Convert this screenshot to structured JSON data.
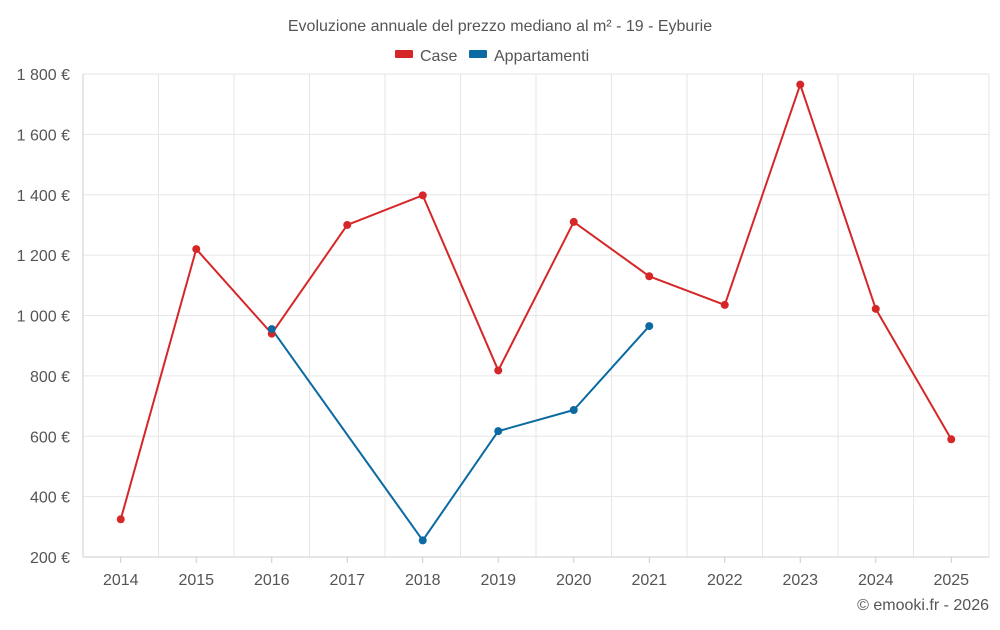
{
  "colors": {
    "case": "#d62728",
    "appartamenti": "#0a6aa1",
    "grid": "#e6e6e6",
    "axis": "#cccccc",
    "text": "#555555"
  },
  "chart_data": {
    "type": "line",
    "title": "Evoluzione annuale del prezzo mediano al m² - 19 - Eyburie",
    "x": [
      "2014",
      "2015",
      "2016",
      "2017",
      "2018",
      "2019",
      "2020",
      "2021",
      "2022",
      "2023",
      "2024",
      "2025"
    ],
    "ylim": [
      200,
      1800
    ],
    "yticks": [
      200,
      400,
      600,
      800,
      1000,
      1200,
      1400,
      1600,
      1800
    ],
    "ytick_labels": [
      "200 €",
      "400 €",
      "600 €",
      "800 €",
      "1 000 €",
      "1 200 €",
      "1 400 €",
      "1 600 €",
      "1 800 €"
    ],
    "legend_position": "top-center",
    "grid": true,
    "series": [
      {
        "name": "Case",
        "color_key": "case",
        "values": [
          325,
          1220,
          940,
          1300,
          1398,
          818,
          1310,
          1130,
          1035,
          1765,
          1022,
          590
        ]
      },
      {
        "name": "Appartamenti",
        "color_key": "appartamenti",
        "values": [
          null,
          null,
          955,
          null,
          255,
          617,
          687,
          965,
          null,
          null,
          null,
          null
        ]
      }
    ]
  },
  "footer": {
    "credit": "© emooki.fr - 2026"
  }
}
